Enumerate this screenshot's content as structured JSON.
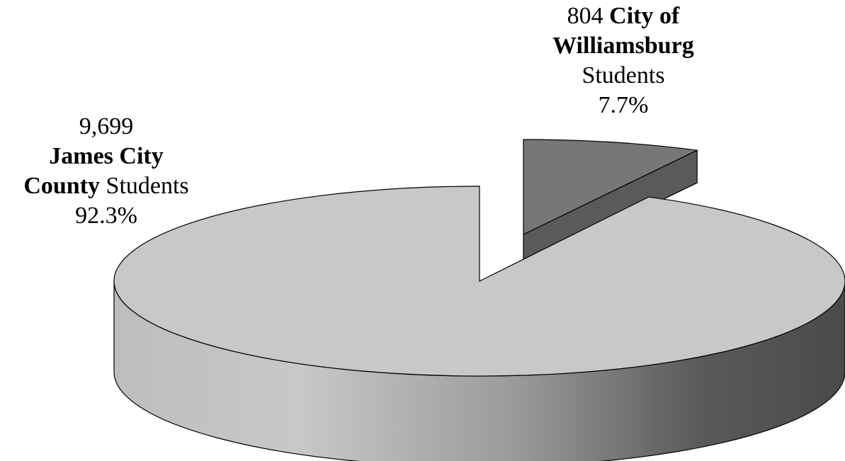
{
  "chart_data": {
    "type": "pie",
    "style": "3d-exploded",
    "slices": [
      {
        "value": 9699,
        "value_text": "9,699",
        "name_bold_1": "James City",
        "name_bold_2": "County",
        "suffix": "Students",
        "percent": 92.3,
        "percent_text": "92.3%",
        "color_top": "#c8c8c8",
        "color_side_light": "#c4c4c4",
        "color_side_dark": "#4a4a4a"
      },
      {
        "value": 804,
        "value_text": "804",
        "name_bold_1": "City of",
        "name_bold_2": "Williamsburg",
        "suffix": "Students",
        "percent": 7.7,
        "percent_text": "7.7%",
        "color_top": "#777777",
        "color_side_light": "#5a5a5a",
        "color_side_dark": "#4a4a4a",
        "exploded": true
      }
    ]
  }
}
